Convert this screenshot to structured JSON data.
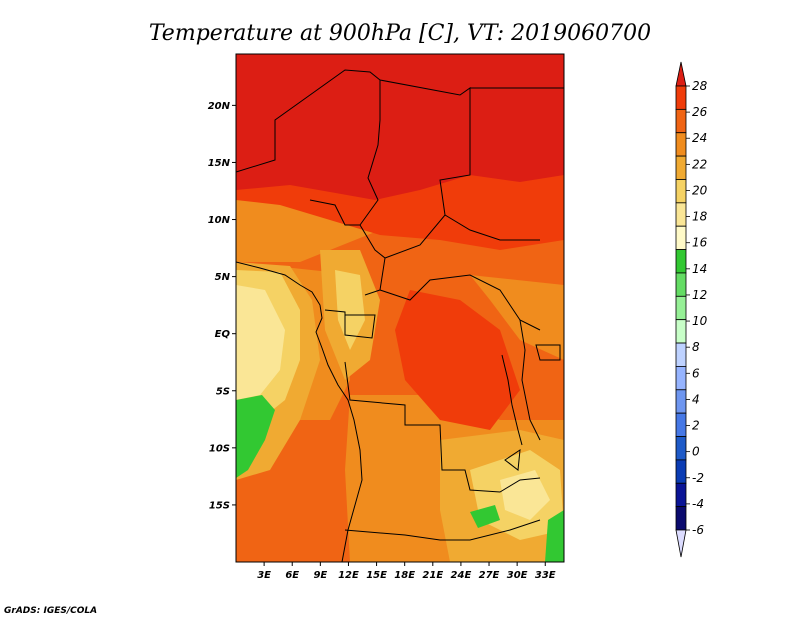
{
  "title": "Temperature at 900hPa [C], VT: 2019060700",
  "credit": "GrADS: IGES/COLA",
  "map": {
    "lat_ticks": [
      {
        "label": "20N",
        "lat": 20
      },
      {
        "label": "15N",
        "lat": 15
      },
      {
        "label": "10N",
        "lat": 10
      },
      {
        "label": "5N",
        "lat": 5
      },
      {
        "label": "EQ",
        "lat": 0
      },
      {
        "label": "5S",
        "lat": -5
      },
      {
        "label": "10S",
        "lat": -10
      },
      {
        "label": "15S",
        "lat": -15
      }
    ],
    "lon_ticks": [
      {
        "label": "3E",
        "lon": 3
      },
      {
        "label": "6E",
        "lon": 6
      },
      {
        "label": "9E",
        "lon": 9
      },
      {
        "label": "12E",
        "lon": 12
      },
      {
        "label": "15E",
        "lon": 15
      },
      {
        "label": "18E",
        "lon": 18
      },
      {
        "label": "21E",
        "lon": 21
      },
      {
        "label": "24E",
        "lon": 24
      },
      {
        "label": "27E",
        "lon": 27
      },
      {
        "label": "30E",
        "lon": 30
      },
      {
        "label": "33E",
        "lon": 33
      }
    ],
    "lon_range": [
      0,
      35
    ],
    "lat_range": [
      -20,
      24.5
    ]
  },
  "colorbar": {
    "levels": [
      "28",
      "26",
      "24",
      "22",
      "20",
      "18",
      "16",
      "14",
      "12",
      "10",
      "8",
      "6",
      "4",
      "2",
      "0",
      "-2",
      "-4",
      "-6"
    ],
    "colors": [
      "#dc1e14",
      "#f03c0a",
      "#f06414",
      "#f08c1e",
      "#f0aa32",
      "#f5d264",
      "#fae696",
      "#fffac8",
      "#32c832",
      "#64dc64",
      "#96f096",
      "#c8ffc8",
      "#bed2ff",
      "#96b4ff",
      "#6e96f0",
      "#4678e6",
      "#1e5ac8",
      "#0a3cb4",
      "#0a1496",
      "#0a0a6e",
      "#dcdcff"
    ]
  }
}
